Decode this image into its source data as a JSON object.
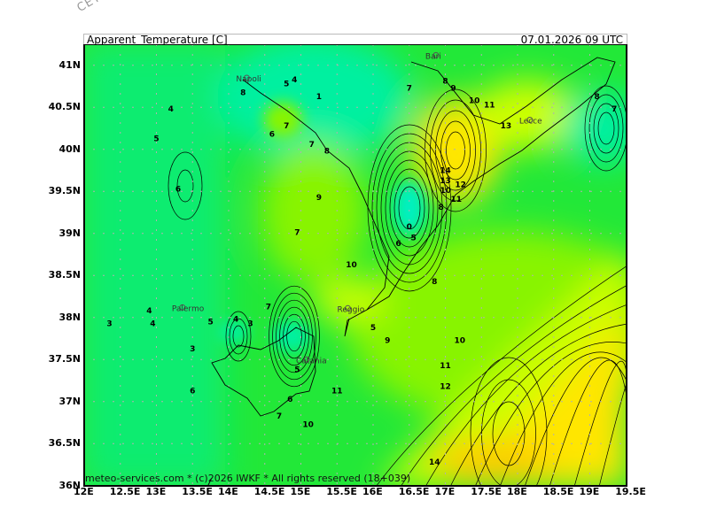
{
  "watermark": "CETA - IT",
  "header": {
    "title": "Apparent_Temperature [C]",
    "valid_time": "07.01.2026 09 UTC"
  },
  "footer": {
    "credit": "meteo-services.com * (c)2026 IWKF * All rights reserved (18+039)"
  },
  "axes": {
    "lon_ticks": [
      "12E",
      "12.5E",
      "13E",
      "13.5E",
      "14E",
      "14.5E",
      "15E",
      "15.5E",
      "16E",
      "16.5E",
      "17E",
      "17.5E",
      "18E",
      "18.5E",
      "19E",
      "19.5E"
    ],
    "lat_ticks": [
      "41N",
      "40.5N",
      "40N",
      "39.5N",
      "39N",
      "38.5N",
      "38N",
      "37.5N",
      "37N",
      "36.5N",
      "36N"
    ]
  },
  "cities": [
    {
      "name": "Napoli",
      "lon": 14.25,
      "lat": 40.85
    },
    {
      "name": "Bari",
      "lon": 16.87,
      "lat": 41.12
    },
    {
      "name": "Lecce",
      "lon": 18.17,
      "lat": 40.35
    },
    {
      "name": "Palermo",
      "lon": 13.36,
      "lat": 38.12
    },
    {
      "name": "Catania",
      "lon": 15.08,
      "lat": 37.5
    },
    {
      "name": "Reggio",
      "lon": 15.65,
      "lat": 38.11
    }
  ],
  "contour_labels": [
    {
      "v": "4",
      "lon": 13.2,
      "lat": 40.45
    },
    {
      "v": "5",
      "lon": 13.0,
      "lat": 40.1
    },
    {
      "v": "6",
      "lon": 13.3,
      "lat": 39.5
    },
    {
      "v": "8",
      "lon": 14.2,
      "lat": 40.75
    },
    {
      "v": "5",
      "lon": 14.8,
      "lat": 40.75
    },
    {
      "v": "4",
      "lon": 14.8,
      "lat": 40.8
    },
    {
      "v": "7",
      "lon": 14.8,
      "lat": 40.25
    },
    {
      "v": "6",
      "lon": 14.6,
      "lat": 40.15
    },
    {
      "v": "1",
      "lon": 15.25,
      "lat": 40.6
    },
    {
      "v": "7",
      "lon": 15.15,
      "lat": 40.03
    },
    {
      "v": "8",
      "lon": 15.25,
      "lat": 39.95
    },
    {
      "v": "9",
      "lon": 15.25,
      "lat": 39.4
    },
    {
      "v": "7",
      "lon": 14.95,
      "lat": 38.98
    },
    {
      "v": "10",
      "lon": 15.7,
      "lat": 38.6
    },
    {
      "v": "7",
      "lon": 16.5,
      "lat": 40.7
    },
    {
      "v": "8",
      "lon": 17.0,
      "lat": 40.78
    },
    {
      "v": "9",
      "lon": 17.0,
      "lat": 40.7
    },
    {
      "v": "10",
      "lon": 17.4,
      "lat": 40.55
    },
    {
      "v": "11",
      "lon": 17.5,
      "lat": 40.5
    },
    {
      "v": "13",
      "lon": 17.95,
      "lat": 40.25
    },
    {
      "v": "8",
      "lon": 19.1,
      "lat": 40.6
    },
    {
      "v": "7",
      "lon": 19.45,
      "lat": 40.45
    },
    {
      "v": "14",
      "lon": 17.0,
      "lat": 39.72
    },
    {
      "v": "13",
      "lon": 17.0,
      "lat": 39.6
    },
    {
      "v": "12",
      "lon": 17.1,
      "lat": 39.55
    },
    {
      "v": "11",
      "lon": 17.15,
      "lat": 39.48
    },
    {
      "v": "10",
      "lon": 17.15,
      "lat": 39.4
    },
    {
      "v": "8",
      "lon": 17.05,
      "lat": 39.28
    },
    {
      "v": "0",
      "lon": 16.5,
      "lat": 39.05
    },
    {
      "v": "6",
      "lon": 16.35,
      "lat": 38.85
    },
    {
      "v": "5",
      "lon": 16.45,
      "lat": 38.92
    },
    {
      "v": "8",
      "lon": 16.85,
      "lat": 38.4
    },
    {
      "v": "7",
      "lon": 14.55,
      "lat": 38.1
    },
    {
      "v": "4",
      "lon": 14.1,
      "lat": 37.95
    },
    {
      "v": "3",
      "lon": 14.3,
      "lat": 37.9
    },
    {
      "v": "5",
      "lon": 13.75,
      "lat": 37.92
    },
    {
      "v": "4",
      "lon": 12.9,
      "lat": 38.05
    },
    {
      "v": "4",
      "lon": 12.95,
      "lat": 37.9
    },
    {
      "v": "3",
      "lon": 12.35,
      "lat": 37.9
    },
    {
      "v": "3",
      "lon": 13.5,
      "lat": 37.6
    },
    {
      "v": "6",
      "lon": 13.5,
      "lat": 37.1
    },
    {
      "v": "5",
      "lon": 14.95,
      "lat": 37.35
    },
    {
      "v": "6",
      "lon": 14.85,
      "lat": 37.0
    },
    {
      "v": "7",
      "lon": 14.7,
      "lat": 36.8
    },
    {
      "v": "10",
      "lon": 15.1,
      "lat": 36.7
    },
    {
      "v": "11",
      "lon": 15.5,
      "lat": 37.1
    },
    {
      "v": "9",
      "lon": 16.2,
      "lat": 37.7
    },
    {
      "v": "5",
      "lon": 16.0,
      "lat": 37.85
    },
    {
      "v": "10",
      "lon": 17.2,
      "lat": 37.7
    },
    {
      "v": "11",
      "lon": 17.0,
      "lat": 37.4
    },
    {
      "v": "12",
      "lon": 17.0,
      "lat": 37.15
    },
    {
      "v": "14",
      "lon": 16.85,
      "lat": 36.25
    }
  ],
  "colors": {
    "cold": "#00f0a0",
    "cool": "#22e838",
    "mild": "#88f400",
    "warm": "#ccff00",
    "hot": "#ffe600",
    "hotter": "#ffcc00",
    "border": "#000000",
    "grid": "#b0b0b0"
  }
}
